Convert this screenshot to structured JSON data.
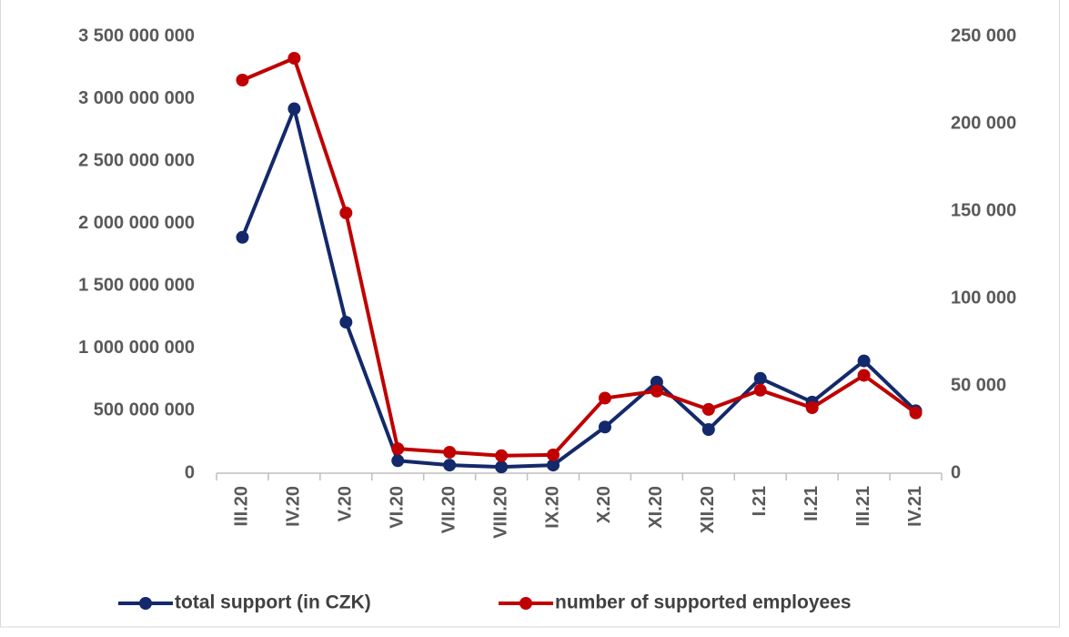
{
  "chart_data": {
    "type": "line",
    "categories": [
      "III.20",
      "IV.20",
      "V.20",
      "VI.20",
      "VII.20",
      "VIII.20",
      "IX.20",
      "X.20",
      "XI.20",
      "XII.20",
      "I.21",
      "II.21",
      "III.21",
      "IV.21"
    ],
    "series": [
      {
        "name": "total support (in CZK)",
        "color": "#13296b",
        "axis": "y",
        "values": [
          1890000000,
          2920000000,
          1210000000,
          100000000,
          65000000,
          50000000,
          65000000,
          370000000,
          730000000,
          350000000,
          760000000,
          570000000,
          900000000,
          500000000
        ]
      },
      {
        "name": "number of supported employees",
        "color": "#c00000",
        "axis": "y2",
        "values": [
          225000,
          237500,
          149000,
          14000,
          12000,
          10000,
          10500,
          43000,
          47000,
          36500,
          47500,
          37500,
          56000,
          34500
        ]
      }
    ],
    "ylim": [
      0,
      3500000000
    ],
    "yticks": [
      0,
      {
        "value": 500000000,
        "label": "500 000 000"
      },
      {
        "value": 1000000000,
        "label": "1 000 000 000"
      },
      {
        "value": 1500000000,
        "label": "1 500 000 000"
      },
      {
        "value": 2000000000,
        "label": "2 000 000 000"
      },
      {
        "value": 2500000000,
        "label": "2 500 000 000"
      },
      {
        "value": 3000000000,
        "label": "3 000 000 000"
      },
      {
        "value": 3500000000,
        "label": "3 500 000 000"
      }
    ],
    "y2lim": [
      0,
      250000
    ],
    "y2ticks": [
      0,
      {
        "value": 50000,
        "label": "50 000"
      },
      {
        "value": 100000,
        "label": "100 000"
      },
      {
        "value": 150000,
        "label": "150 000"
      },
      {
        "value": 200000,
        "label": "200 000"
      },
      {
        "value": 250000,
        "label": "250 000"
      }
    ],
    "legend": "bottom"
  }
}
